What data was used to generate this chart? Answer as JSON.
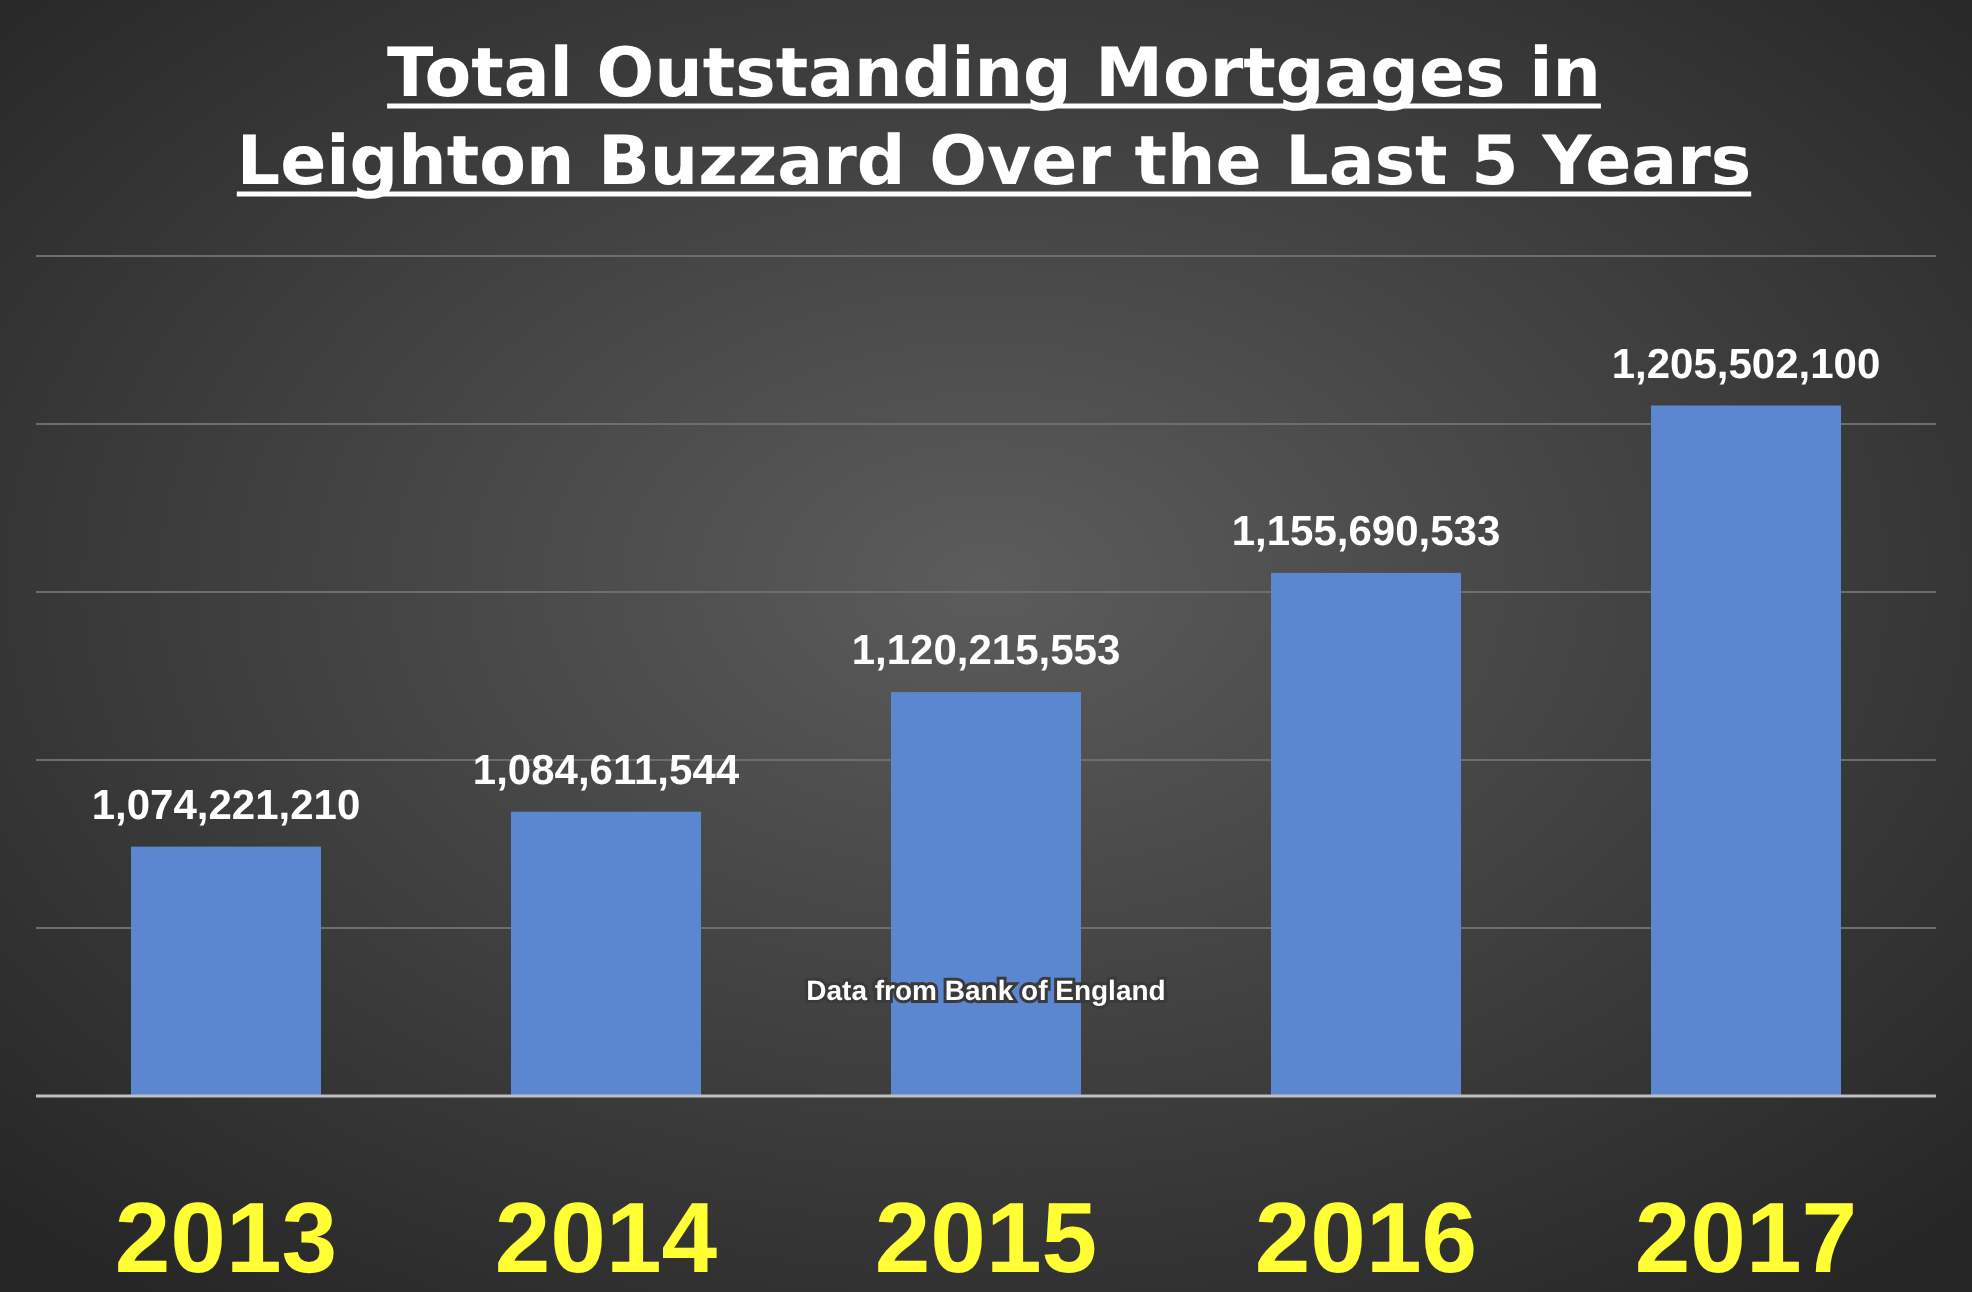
{
  "chart_data": {
    "type": "bar",
    "title": "Total Outstanding Mortgages in\nLeighton Buzzard Over the Last 5 Years",
    "categories": [
      "2013",
      "2014",
      "2015",
      "2016",
      "2017"
    ],
    "values": [
      1074221210,
      1084611544,
      1120215553,
      1155690533,
      1205502100
    ],
    "color": "#5a87d0",
    "ylim": [
      1000000000,
      1250000000
    ],
    "yticks": [
      {
        "value": 1000000000,
        "label": null
      },
      {
        "value": 1050000000,
        "label": null
      },
      {
        "value": 1100000000,
        "label": null
      },
      {
        "value": 1150000000,
        "label": null
      },
      {
        "value": 1200000000,
        "label": null
      },
      {
        "value": 1250000000,
        "label": null
      }
    ],
    "value_labels": [
      "1,074,221,210",
      "1,084,611,544",
      "1,120,215,553",
      "1,155,690,533",
      "1,205,502,100"
    ],
    "grid": "y",
    "tick_labels": "x",
    "annotations": [
      "Data from Bank of England"
    ]
  }
}
